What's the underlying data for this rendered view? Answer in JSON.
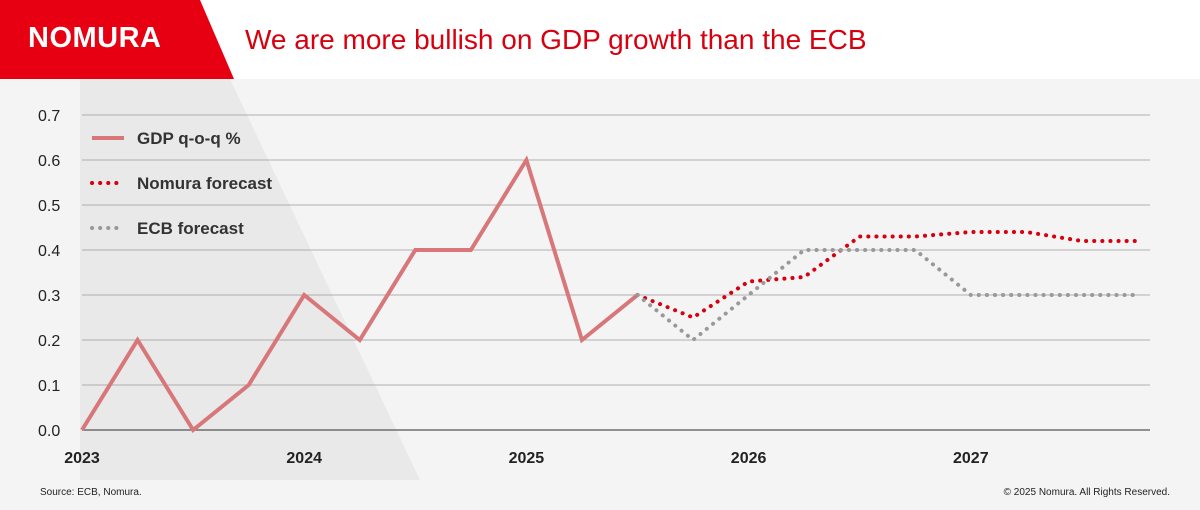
{
  "brand": {
    "logo_text": "NOMURA",
    "color": "#d7000f"
  },
  "header": {
    "title": "We are more bullish on GDP growth than the ECB"
  },
  "footer": {
    "source": "Source: ECB, Nomura.",
    "copyright": "© 2025 Nomura. All Rights Reserved."
  },
  "chart_data": {
    "type": "line",
    "title": "We are more bullish on GDP growth than the ECB",
    "xlabel": "",
    "ylabel": "",
    "ylim": [
      0,
      0.7
    ],
    "yticks": [
      "0.0",
      "0.1",
      "0.2",
      "0.3",
      "0.4",
      "0.5",
      "0.6",
      "0.7"
    ],
    "xticks": [
      "2023",
      "2024",
      "2025",
      "2026",
      "2027"
    ],
    "grid": "horizontal",
    "legend_position": "top-left",
    "series": [
      {
        "name": "GDP q-o-q %",
        "color": "#d8777a",
        "style": "solid",
        "x": [
          "2023Q1",
          "2023Q2",
          "2023Q3",
          "2023Q4",
          "2024Q1",
          "2024Q2",
          "2024Q3",
          "2024Q4",
          "2025Q1",
          "2025Q2",
          "2025Q3"
        ],
        "values": [
          0.0,
          0.2,
          0.0,
          0.1,
          0.3,
          0.2,
          0.4,
          0.4,
          0.6,
          0.2,
          0.3
        ]
      },
      {
        "name": "Nomura forecast",
        "color": "#d7000f",
        "style": "dotted",
        "x": [
          "2025Q3",
          "2025Q4",
          "2026Q1",
          "2026Q2",
          "2026Q3",
          "2026Q4",
          "2027Q1",
          "2027Q2",
          "2027Q3",
          "2027Q4"
        ],
        "values": [
          0.3,
          0.25,
          0.33,
          0.34,
          0.43,
          0.43,
          0.44,
          0.44,
          0.42,
          0.42
        ]
      },
      {
        "name": "ECB forecast",
        "color": "#999999",
        "style": "dotted",
        "x": [
          "2025Q3",
          "2025Q4",
          "2026Q1",
          "2026Q2",
          "2026Q3",
          "2026Q4",
          "2027Q1",
          "2027Q2",
          "2027Q3",
          "2027Q4"
        ],
        "values": [
          0.3,
          0.2,
          0.3,
          0.4,
          0.4,
          0.4,
          0.3,
          0.3,
          0.3,
          0.3
        ]
      }
    ]
  }
}
